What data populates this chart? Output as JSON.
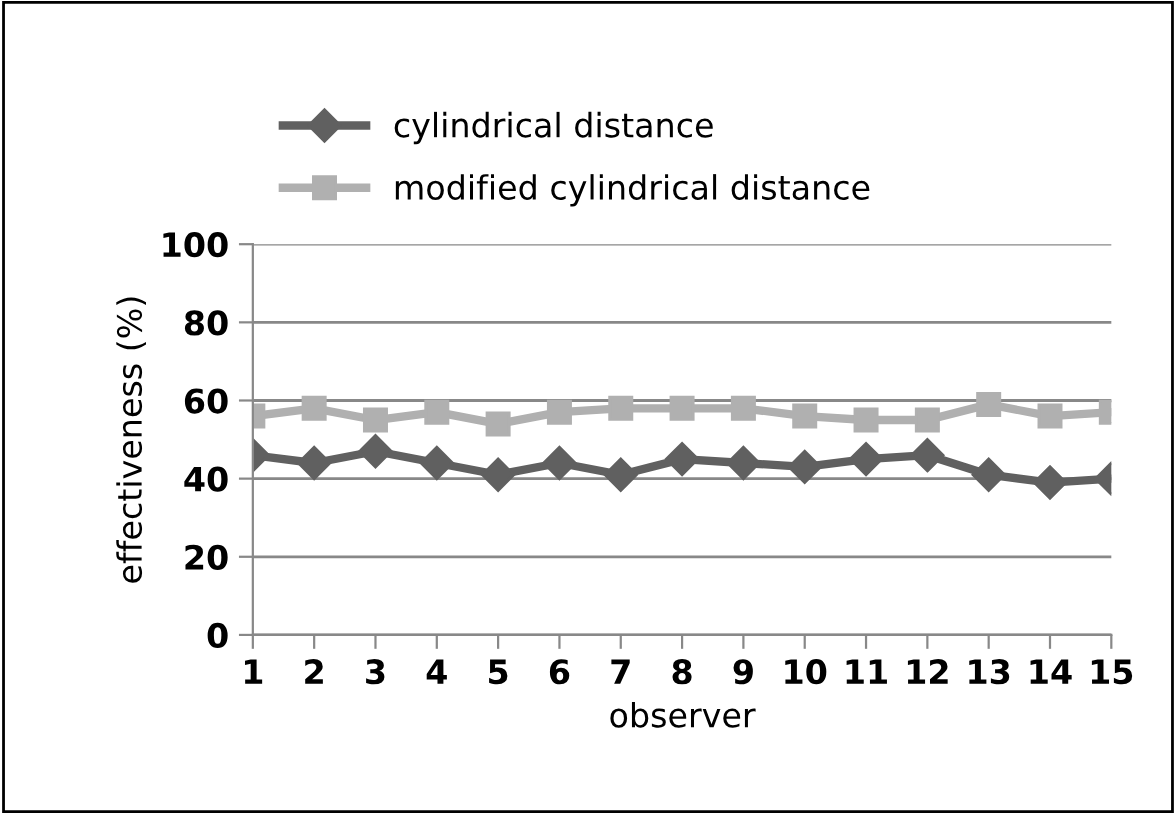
{
  "chart_data": {
    "type": "line",
    "xlabel": "observer",
    "ylabel": "effectiveness (%)",
    "categories": [
      "1",
      "2",
      "3",
      "4",
      "5",
      "6",
      "7",
      "8",
      "9",
      "10",
      "11",
      "12",
      "13",
      "14",
      "15"
    ],
    "series": [
      {
        "name": "cylindrical distance",
        "color": "#606060",
        "marker": "diamond",
        "values": [
          46,
          44,
          47,
          44,
          41,
          44,
          41,
          45,
          44,
          43,
          45,
          46,
          41,
          39,
          40
        ]
      },
      {
        "name": "modified cylindrical distance",
        "color": "#b0b0b0",
        "marker": "square",
        "values": [
          56,
          58,
          55,
          57,
          54,
          57,
          58,
          58,
          58,
          56,
          55,
          55,
          59,
          56,
          57
        ]
      }
    ],
    "ylim": [
      0,
      100
    ],
    "yticks": [
      0,
      20,
      40,
      60,
      80,
      100
    ],
    "grid": "y",
    "legend": "top"
  }
}
